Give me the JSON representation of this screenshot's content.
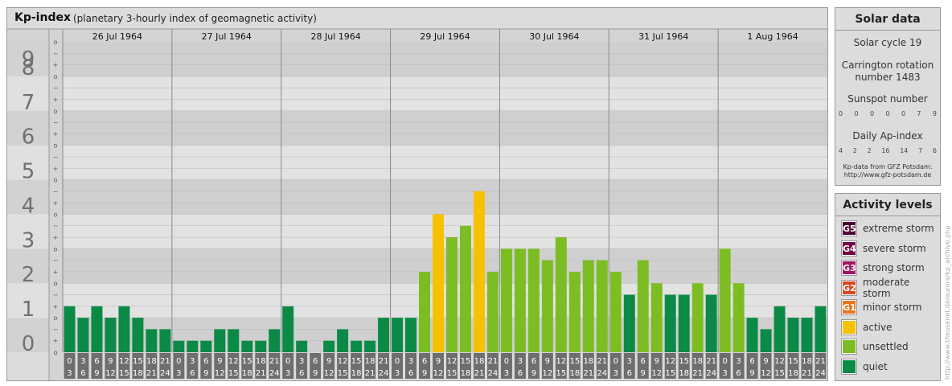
{
  "header": {
    "title": "Kp-index",
    "subtitle": "(planetary 3-hourly index of geomagnetic activity)"
  },
  "chart_data": {
    "type": "bar",
    "title": "Kp-index",
    "subtitle": "(planetary 3-hourly index of geomagnetic activity)",
    "ylim": [
      0,
      9
    ],
    "y_ticks": [
      "0",
      "1",
      "2",
      "3",
      "4",
      "5",
      "6",
      "7",
      "8",
      "9"
    ],
    "subticks": [
      "o",
      "+",
      "−"
    ],
    "days": [
      "26 Jul 1964",
      "27 Jul 1964",
      "28 Jul 1964",
      "29 Jul 1964",
      "30 Jul 1964",
      "31 Jul 1964",
      "1 Aug 1964"
    ],
    "hour_labels": [
      [
        "0",
        "3"
      ],
      [
        "3",
        "6"
      ],
      [
        "6",
        "9"
      ],
      [
        "9",
        "12"
      ],
      [
        "12",
        "15"
      ],
      [
        "15",
        "18"
      ],
      [
        "18",
        "21"
      ],
      [
        "21",
        "24"
      ]
    ],
    "values": [
      1.333,
      1,
      1.333,
      1,
      1.333,
      1,
      0.667,
      0.667,
      0.333,
      0.333,
      0.333,
      0.667,
      0.667,
      0.333,
      0.333,
      0.667,
      1.333,
      0.333,
      0,
      0.333,
      0.667,
      0.333,
      0.333,
      1,
      1,
      1,
      2.333,
      4,
      3.333,
      3.667,
      4.667,
      2.333,
      3,
      3,
      3,
      2.667,
      3.333,
      2.333,
      2.667,
      2.667,
      2.333,
      1.667,
      2.667,
      2,
      1.667,
      1.667,
      2,
      1.667,
      3,
      2,
      1,
      0.667,
      1.333,
      1,
      1,
      1.333
    ],
    "colors": {
      "quiet": "#0b8a47",
      "unsettled": "#7cbd24",
      "active": "#f6c200",
      "G1": "#e87722",
      "G2": "#d5481d",
      "G3": "#a2145f",
      "G4": "#6f0a47",
      "G5": "#4a0032"
    }
  },
  "solar": {
    "title": "Solar data",
    "cycle": "Solar cycle 19",
    "carrington_1": "Carrington rotation",
    "carrington_2": "number 1483",
    "sunspot_title": "Sunspot number",
    "sunspots": [
      "0",
      "0",
      "0",
      "0",
      "0",
      "7",
      "9"
    ],
    "ap_title": "Daily Ap-index",
    "ap": [
      "4",
      "2",
      "2",
      "16",
      "14",
      "7",
      "6"
    ],
    "note_1": "Kp-data from GFZ Potsdam:",
    "note_2": "http://www.gfz-potsdam.de"
  },
  "activity": {
    "title": "Activity levels",
    "levels": [
      {
        "badge": "G5",
        "label": "extreme storm",
        "color": "#4a0032"
      },
      {
        "badge": "G4",
        "label": "severe storm",
        "color": "#6f0a47"
      },
      {
        "badge": "G3",
        "label": "strong storm",
        "color": "#a2145f"
      },
      {
        "badge": "G2",
        "label": "moderate storm",
        "color": "#d5481d"
      },
      {
        "badge": "G1",
        "label": "minor storm",
        "color": "#e87722"
      },
      {
        "badge": "",
        "label": "active",
        "color": "#f6c200"
      },
      {
        "badge": "",
        "label": "unsettled",
        "color": "#7cbd24"
      },
      {
        "badge": "",
        "label": "quiet",
        "color": "#0b8a47"
      }
    ]
  },
  "credit": "http://www.theusenet.de/aurora/kp_archive.php"
}
